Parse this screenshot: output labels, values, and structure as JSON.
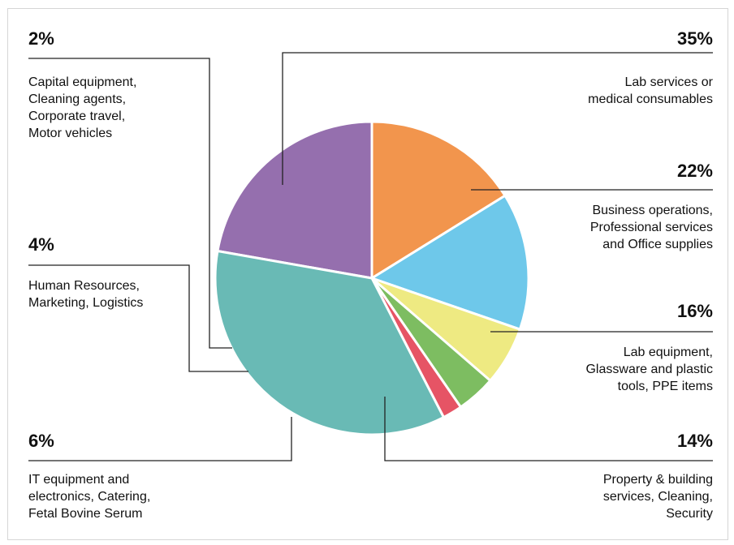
{
  "chart_data": {
    "type": "pie",
    "colors": {
      "teal": "#69BAB5",
      "purple": "#956FAE",
      "orange": "#F2954D",
      "blue": "#6EC8EA",
      "yellow": "#EEEA82",
      "green": "#7DBD61",
      "red": "#E65465",
      "leader": "#222222"
    },
    "slices": [
      {
        "key": "lab",
        "value": 35,
        "percent_label": "35%",
        "label_lines": [
          "Lab services or",
          "medical consumables"
        ],
        "color": "#69BAB5"
      },
      {
        "key": "biz",
        "value": 22,
        "percent_label": "22%",
        "label_lines": [
          "Business operations,",
          "Professional services",
          "and Office supplies"
        ],
        "color": "#956FAE"
      },
      {
        "key": "equip",
        "value": 16,
        "percent_label": "16%",
        "label_lines": [
          "Lab equipment,",
          "Glassware and plastic",
          "tools, PPE items"
        ],
        "color": "#F2954D"
      },
      {
        "key": "property",
        "value": 14,
        "percent_label": "14%",
        "label_lines": [
          "Property & building",
          "services, Cleaning,",
          "Security"
        ],
        "color": "#6EC8EA"
      },
      {
        "key": "it",
        "value": 6,
        "percent_label": "6%",
        "label_lines": [
          "IT equipment and",
          "electronics, Catering,",
          "Fetal Bovine Serum"
        ],
        "color": "#EEEA82"
      },
      {
        "key": "hr",
        "value": 4,
        "percent_label": "4%",
        "label_lines": [
          "Human Resources,",
          "Marketing, Logistics"
        ],
        "color": "#7DBD61"
      },
      {
        "key": "capital",
        "value": 2,
        "percent_label": "2%",
        "label_lines": [
          "Capital equipment,",
          "Cleaning agents,",
          "Corporate travel,",
          "Motor vehicles"
        ],
        "color": "#E65465"
      }
    ]
  }
}
